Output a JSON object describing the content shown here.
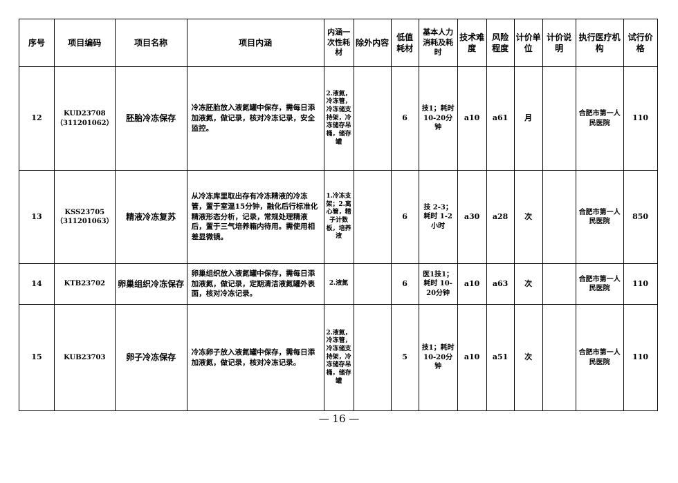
{
  "headers": [
    "序号",
    "项目编码",
    "项目名称",
    "项目内涵",
    "内涵一次性耗材",
    "除外内容",
    "低值耗材",
    "基本人力消耗及耗时",
    "技术难度",
    "风险程度",
    "计价单位",
    "计价说明",
    "执行医疗机构",
    "试行价格"
  ],
  "rows": [
    {
      "no": "12",
      "code": "KUD23708（311201062）",
      "name": "胚胎冷冻保存",
      "content": "冷冻胚胎放入液氮罐中保存，需每日添加液氮，做记录，核对冷冻记录，安全监控。",
      "consumables": "2.液氮，冷冻管，冷冻储支持架，冷冻储存吊桶，储存罐",
      "excluded": "",
      "low_value": "6",
      "labor": "技1；耗时 10-20分钟",
      "difficulty": "a10",
      "risk": "a61",
      "unit": "月",
      "note": "",
      "institution": "合肥市第一人民医院",
      "price": "110"
    },
    {
      "no": "13",
      "code": "KSS23705（311201063）",
      "name": "精液冷冻复苏",
      "content": "从冷冻库里取出存有冷冻精液的冷冻管，置于室温15分钟，融化后行标准化精液形态分析，记录，常规处理精液后，置于三气培养箱内待用。需使用相差显微镜。",
      "consumables": "1.冷冻支架；2.离心管，精子计数板，培养液",
      "excluded": "",
      "low_value": "6",
      "labor": "技 2-3；耗时 1-2小时",
      "difficulty": "a30",
      "risk": "a28",
      "unit": "次",
      "note": "",
      "institution": "合肥市第一人民医院",
      "price": "850"
    },
    {
      "no": "14",
      "code": "KTB23702",
      "name": "卵巢组织冷冻保存",
      "content": "卵巢组织放入液氮罐中保存，需每日添加液氮，做记录，定期清洁液氮罐外表面，核对冷冻记录。",
      "consumables": "2.液氮",
      "excluded": "",
      "low_value": "6",
      "labor": "医1技1；耗时 10-20分钟",
      "difficulty": "a10",
      "risk": "a63",
      "unit": "次",
      "note": "",
      "institution": "合肥市第一人民医院",
      "price": "110"
    },
    {
      "no": "15",
      "code": "KUB23703",
      "name": "卵子冷冻保存",
      "content": "冷冻卵子放入液氮罐中保存，需每日添加液氮，做记录，核对冷冻记录。",
      "consumables": "2.液氮，冷冻管，冷冻储支持架，冷冻储存吊桶，储存罐",
      "excluded": "",
      "low_value": "5",
      "labor": "技1；耗时 10-20分钟",
      "difficulty": "a10",
      "risk": "a51",
      "unit": "次",
      "note": "",
      "institution": "合肥市第一人民医院",
      "price": "110"
    }
  ],
  "page_number": "— 16 —"
}
